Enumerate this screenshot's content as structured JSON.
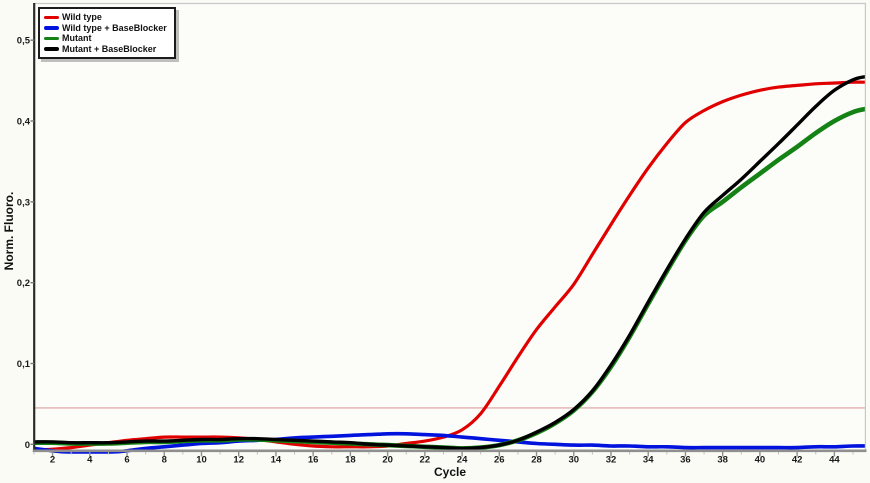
{
  "figure": {
    "kind": "qPCR amplification plot",
    "background_color": "#fbfbf6",
    "plot_background_color": "#fcfcf8"
  },
  "chart_data": {
    "type": "line",
    "title": "",
    "xlabel": "Cycle",
    "ylabel": "Norm. Fluoro.",
    "xlim": [
      0.97,
      45.7
    ],
    "ylim": [
      -0.008,
      0.546
    ],
    "grid": false,
    "legend_position": "top-left",
    "x_ticks": [
      2,
      4,
      6,
      8,
      10,
      12,
      14,
      16,
      18,
      20,
      22,
      24,
      26,
      28,
      30,
      32,
      34,
      36,
      38,
      40,
      42,
      44
    ],
    "x_minor_ticks": [
      1,
      3,
      5,
      7,
      9,
      11,
      13,
      15,
      17,
      19,
      21,
      23,
      25,
      27,
      29,
      31,
      33,
      35,
      37,
      39,
      41,
      43,
      45
    ],
    "y_ticks": [
      {
        "value": 0.0,
        "label": "0"
      },
      {
        "value": 0.1,
        "label": "0,1"
      },
      {
        "value": 0.2,
        "label": "0,2"
      },
      {
        "value": 0.3,
        "label": "0,3"
      },
      {
        "value": 0.4,
        "label": "0,4"
      },
      {
        "value": 0.5,
        "label": "0,5"
      }
    ],
    "threshold_line": {
      "value": 0.045,
      "color": "#dd9e9e"
    },
    "series": [
      {
        "name": "Wild type",
        "color": "#e10000",
        "width": 3.2,
        "points": [
          [
            1,
            -0.007
          ],
          [
            2,
            -0.006
          ],
          [
            3,
            -0.004
          ],
          [
            4,
            -0.001
          ],
          [
            5,
            0.002
          ],
          [
            6,
            0.005
          ],
          [
            7,
            0.007
          ],
          [
            8,
            0.009
          ],
          [
            9,
            0.009
          ],
          [
            10,
            0.009
          ],
          [
            11,
            0.009
          ],
          [
            12,
            0.008
          ],
          [
            13,
            0.006
          ],
          [
            14,
            0.003
          ],
          [
            15,
            0.0
          ],
          [
            16,
            -0.002
          ],
          [
            17,
            -0.003
          ],
          [
            18,
            -0.003
          ],
          [
            19,
            -0.003
          ],
          [
            20,
            -0.002
          ],
          [
            21,
            0.001
          ],
          [
            22,
            0.004
          ],
          [
            23,
            0.009
          ],
          [
            24,
            0.018
          ],
          [
            25,
            0.038
          ],
          [
            26,
            0.072
          ],
          [
            27,
            0.108
          ],
          [
            28,
            0.142
          ],
          [
            29,
            0.17
          ],
          [
            30,
            0.198
          ],
          [
            31,
            0.235
          ],
          [
            32,
            0.272
          ],
          [
            33,
            0.308
          ],
          [
            34,
            0.342
          ],
          [
            35,
            0.372
          ],
          [
            36,
            0.398
          ],
          [
            37,
            0.413
          ],
          [
            38,
            0.424
          ],
          [
            39,
            0.432
          ],
          [
            40,
            0.438
          ],
          [
            41,
            0.442
          ],
          [
            42,
            0.444
          ],
          [
            43,
            0.446
          ],
          [
            44,
            0.447
          ],
          [
            45,
            0.448
          ],
          [
            45.7,
            0.448
          ]
        ]
      },
      {
        "name": "Wild type + BaseBlocker",
        "color": "#0012dd",
        "width": 3.6,
        "points": [
          [
            1,
            -0.005
          ],
          [
            2,
            -0.008
          ],
          [
            3,
            -0.01
          ],
          [
            4,
            -0.011
          ],
          [
            5,
            -0.01
          ],
          [
            6,
            -0.008
          ],
          [
            7,
            -0.005
          ],
          [
            8,
            -0.003
          ],
          [
            9,
            -0.001
          ],
          [
            10,
            0.001
          ],
          [
            11,
            0.002
          ],
          [
            12,
            0.004
          ],
          [
            13,
            0.005
          ],
          [
            14,
            0.006
          ],
          [
            15,
            0.008
          ],
          [
            16,
            0.009
          ],
          [
            17,
            0.01
          ],
          [
            18,
            0.011
          ],
          [
            19,
            0.012
          ],
          [
            20,
            0.013
          ],
          [
            21,
            0.013
          ],
          [
            22,
            0.012
          ],
          [
            23,
            0.011
          ],
          [
            24,
            0.009
          ],
          [
            25,
            0.007
          ],
          [
            26,
            0.005
          ],
          [
            27,
            0.003
          ],
          [
            28,
            0.001
          ],
          [
            29,
            0.0
          ],
          [
            30,
            -0.001
          ],
          [
            31,
            -0.001
          ],
          [
            32,
            -0.002
          ],
          [
            33,
            -0.002
          ],
          [
            34,
            -0.003
          ],
          [
            35,
            -0.003
          ],
          [
            36,
            -0.004
          ],
          [
            37,
            -0.004
          ],
          [
            38,
            -0.004
          ],
          [
            39,
            -0.004
          ],
          [
            40,
            -0.004
          ],
          [
            41,
            -0.004
          ],
          [
            42,
            -0.004
          ],
          [
            43,
            -0.003
          ],
          [
            44,
            -0.003
          ],
          [
            45,
            -0.002
          ],
          [
            45.7,
            -0.002
          ]
        ]
      },
      {
        "name": "Mutant",
        "color": "#148214",
        "width": 4.6,
        "points": [
          [
            1,
            0.002
          ],
          [
            2,
            0.002
          ],
          [
            3,
            0.001
          ],
          [
            4,
            0.001
          ],
          [
            5,
            0.001
          ],
          [
            6,
            0.002
          ],
          [
            7,
            0.003
          ],
          [
            8,
            0.003
          ],
          [
            9,
            0.004
          ],
          [
            10,
            0.005
          ],
          [
            11,
            0.005
          ],
          [
            12,
            0.006
          ],
          [
            13,
            0.006
          ],
          [
            14,
            0.005
          ],
          [
            15,
            0.004
          ],
          [
            16,
            0.003
          ],
          [
            17,
            0.002
          ],
          [
            18,
            0.001
          ],
          [
            19,
            0.0
          ],
          [
            20,
            -0.001
          ],
          [
            21,
            -0.002
          ],
          [
            22,
            -0.003
          ],
          [
            23,
            -0.004
          ],
          [
            24,
            -0.005
          ],
          [
            25,
            -0.004
          ],
          [
            26,
            -0.001
          ],
          [
            27,
            0.005
          ],
          [
            28,
            0.014
          ],
          [
            29,
            0.026
          ],
          [
            30,
            0.042
          ],
          [
            31,
            0.065
          ],
          [
            32,
            0.096
          ],
          [
            33,
            0.133
          ],
          [
            34,
            0.174
          ],
          [
            35,
            0.214
          ],
          [
            36,
            0.252
          ],
          [
            37,
            0.283
          ],
          [
            38,
            0.3
          ],
          [
            39,
            0.318
          ],
          [
            40,
            0.335
          ],
          [
            41,
            0.352
          ],
          [
            42,
            0.368
          ],
          [
            43,
            0.385
          ],
          [
            44,
            0.4
          ],
          [
            45,
            0.411
          ],
          [
            45.7,
            0.415
          ]
        ]
      },
      {
        "name": "Mutant + BaseBlocker",
        "color": "#000000",
        "width": 3.4,
        "points": [
          [
            1,
            0.003
          ],
          [
            2,
            0.003
          ],
          [
            3,
            0.002
          ],
          [
            4,
            0.002
          ],
          [
            5,
            0.002
          ],
          [
            6,
            0.003
          ],
          [
            7,
            0.004
          ],
          [
            8,
            0.004
          ],
          [
            9,
            0.005
          ],
          [
            10,
            0.006
          ],
          [
            11,
            0.006
          ],
          [
            12,
            0.007
          ],
          [
            13,
            0.007
          ],
          [
            14,
            0.006
          ],
          [
            15,
            0.005
          ],
          [
            16,
            0.004
          ],
          [
            17,
            0.003
          ],
          [
            18,
            0.002
          ],
          [
            19,
            0.0
          ],
          [
            20,
            -0.001
          ],
          [
            21,
            -0.002
          ],
          [
            22,
            -0.003
          ],
          [
            23,
            -0.004
          ],
          [
            24,
            -0.005
          ],
          [
            25,
            -0.004
          ],
          [
            26,
            -0.001
          ],
          [
            27,
            0.005
          ],
          [
            28,
            0.015
          ],
          [
            29,
            0.027
          ],
          [
            30,
            0.043
          ],
          [
            31,
            0.066
          ],
          [
            32,
            0.098
          ],
          [
            33,
            0.135
          ],
          [
            34,
            0.176
          ],
          [
            35,
            0.216
          ],
          [
            36,
            0.254
          ],
          [
            37,
            0.287
          ],
          [
            38,
            0.308
          ],
          [
            39,
            0.328
          ],
          [
            40,
            0.35
          ],
          [
            41,
            0.372
          ],
          [
            42,
            0.395
          ],
          [
            43,
            0.418
          ],
          [
            44,
            0.438
          ],
          [
            45,
            0.451
          ],
          [
            45.7,
            0.455
          ]
        ]
      }
    ]
  },
  "colors": {
    "axis_border_left": "#2b2b2b",
    "axis_border_bottom": "#8f8f8f",
    "axis_border_light": "#c8c8c8",
    "tick_mark": "#8f8f8f",
    "tick_label": "#1a1a1a"
  }
}
